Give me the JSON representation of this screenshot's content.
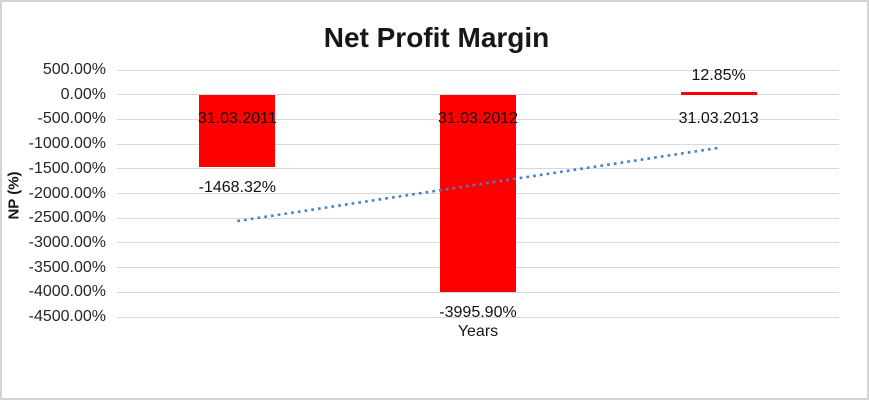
{
  "chart_data": {
    "type": "bar",
    "title": "Net Profit Margin",
    "xlabel": "Years",
    "ylabel": "NP (%)",
    "categories": [
      "31.03.2011",
      "31.03.2012",
      "31.03.2013"
    ],
    "values": [
      -1468.32,
      -3995.9,
      12.85
    ],
    "value_labels": [
      "-1468.32%",
      "-3995.90%",
      "12.85%"
    ],
    "ylim": [
      -4500,
      500
    ],
    "ytick_step": 500,
    "ytick_labels": [
      "500.00%",
      "0.00%",
      "-500.00%",
      "-1000.00%",
      "-1500.00%",
      "-2000.00%",
      "-2500.00%",
      "-3000.00%",
      "-3500.00%",
      "-4000.00%",
      "-4500.00%"
    ],
    "grid": true,
    "legend_position": "none",
    "bar_color": "#ff0000",
    "gridline_color": "#d9d9d9",
    "trendline": {
      "type": "linear",
      "style": "dotted",
      "color": "#4a80c4",
      "start_value": -2557.69,
      "end_value": -1076.54
    }
  }
}
